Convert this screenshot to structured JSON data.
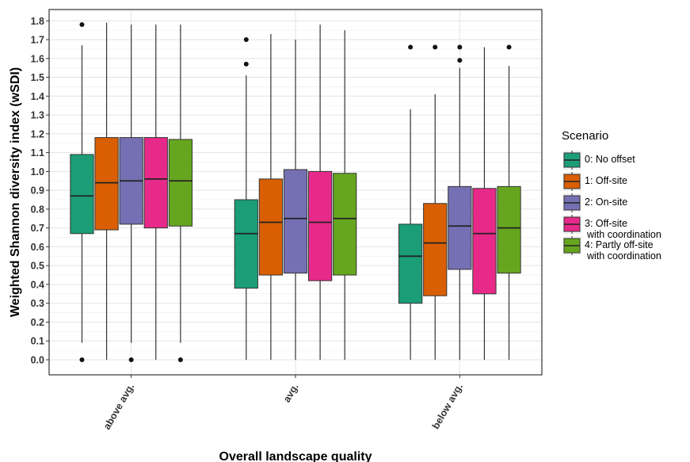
{
  "chart_data": {
    "type": "boxplot",
    "xlabel": "Overall landscape quality",
    "ylabel": "Weighted Shannon diversity index (wSDI)",
    "ylim": [
      -0.08,
      1.86
    ],
    "yticks": [
      0.0,
      0.1,
      0.2,
      0.3,
      0.4,
      0.5,
      0.6,
      0.7,
      0.8,
      0.9,
      1.0,
      1.1,
      1.2,
      1.3,
      1.4,
      1.5,
      1.6,
      1.7,
      1.8
    ],
    "ytick_labels": [
      "0.0",
      "0.1",
      "0.2",
      "0.3",
      "0.4",
      "0.5",
      "0.6",
      "0.7",
      "0.8",
      "0.9",
      "1.0",
      "1.1",
      "1.2",
      "1.3",
      "1.4",
      "1.5",
      "1.6",
      "1.7",
      "1.8"
    ],
    "categories": [
      "above avg.",
      "avg.",
      "below avg."
    ],
    "grid": true,
    "legend": {
      "title": "Scenario",
      "placement": "right",
      "entries": [
        {
          "lines": [
            "0: No offset"
          ],
          "color": "#1b9e77"
        },
        {
          "lines": [
            "1: Off-site"
          ],
          "color": "#d95f02"
        },
        {
          "lines": [
            "2: On-site"
          ],
          "color": "#7570b3"
        },
        {
          "lines": [
            "3: Off-site",
            "with coordination"
          ],
          "color": "#e7298a"
        },
        {
          "lines": [
            "4: Partly off-site",
            "with coordination"
          ],
          "color": "#66a61e"
        }
      ]
    },
    "series": [
      {
        "name": "0: No offset",
        "color": "#1b9e77",
        "boxes": [
          {
            "whisker_low": 0.09,
            "q1": 0.67,
            "median": 0.87,
            "q3": 1.09,
            "whisker_high": 1.67,
            "outliers": [
              0.0,
              1.78
            ]
          },
          {
            "whisker_low": 0.0,
            "q1": 0.38,
            "median": 0.67,
            "q3": 0.85,
            "whisker_high": 1.51,
            "outliers": [
              1.57,
              1.7
            ]
          },
          {
            "whisker_low": 0.0,
            "q1": 0.3,
            "median": 0.55,
            "q3": 0.72,
            "whisker_high": 1.33,
            "outliers": [
              1.66
            ]
          }
        ]
      },
      {
        "name": "1: Off-site",
        "color": "#d95f02",
        "boxes": [
          {
            "whisker_low": 0.0,
            "q1": 0.69,
            "median": 0.94,
            "q3": 1.18,
            "whisker_high": 1.79,
            "outliers": []
          },
          {
            "whisker_low": 0.0,
            "q1": 0.45,
            "median": 0.73,
            "q3": 0.96,
            "whisker_high": 1.73,
            "outliers": []
          },
          {
            "whisker_low": 0.0,
            "q1": 0.34,
            "median": 0.62,
            "q3": 0.83,
            "whisker_high": 1.41,
            "outliers": [
              1.66
            ]
          }
        ]
      },
      {
        "name": "2: On-site",
        "color": "#7570b3",
        "boxes": [
          {
            "whisker_low": 0.09,
            "q1": 0.72,
            "median": 0.95,
            "q3": 1.18,
            "whisker_high": 1.78,
            "outliers": [
              0.0
            ]
          },
          {
            "whisker_low": 0.0,
            "q1": 0.46,
            "median": 0.75,
            "q3": 1.01,
            "whisker_high": 1.7,
            "outliers": []
          },
          {
            "whisker_low": 0.0,
            "q1": 0.48,
            "median": 0.71,
            "q3": 0.92,
            "whisker_high": 1.55,
            "outliers": [
              1.59,
              1.66
            ]
          }
        ]
      },
      {
        "name": "3: Off-site with coordination",
        "color": "#e7298a",
        "boxes": [
          {
            "whisker_low": 0.0,
            "q1": 0.7,
            "median": 0.96,
            "q3": 1.18,
            "whisker_high": 1.78,
            "outliers": []
          },
          {
            "whisker_low": 0.0,
            "q1": 0.42,
            "median": 0.73,
            "q3": 1.0,
            "whisker_high": 1.78,
            "outliers": []
          },
          {
            "whisker_low": 0.0,
            "q1": 0.35,
            "median": 0.67,
            "q3": 0.91,
            "whisker_high": 1.66,
            "outliers": []
          }
        ]
      },
      {
        "name": "4: Partly off-site with coordination",
        "color": "#66a61e",
        "boxes": [
          {
            "whisker_low": 0.09,
            "q1": 0.71,
            "median": 0.95,
            "q3": 1.17,
            "whisker_high": 1.78,
            "outliers": [
              0.0
            ]
          },
          {
            "whisker_low": 0.0,
            "q1": 0.45,
            "median": 0.75,
            "q3": 0.99,
            "whisker_high": 1.75,
            "outliers": []
          },
          {
            "whisker_low": 0.0,
            "q1": 0.46,
            "median": 0.7,
            "q3": 0.92,
            "whisker_high": 1.56,
            "outliers": [
              1.66
            ]
          }
        ]
      }
    ]
  }
}
